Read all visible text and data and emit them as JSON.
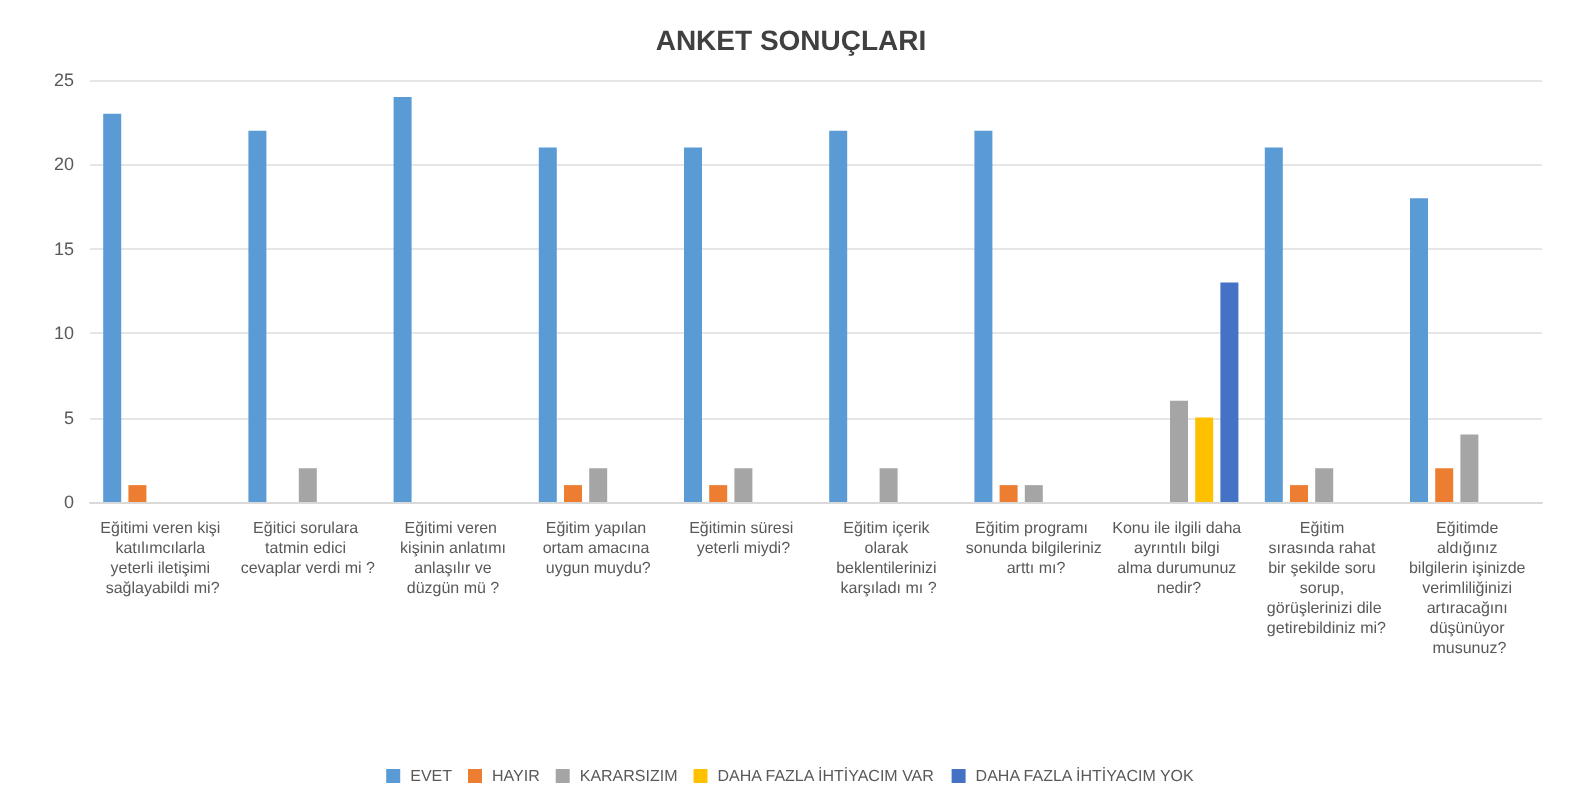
{
  "chart_data": {
    "type": "bar",
    "title": "ANKET SONUÇLARI",
    "categories": [
      "Eğitimi veren kişi katılımcılarla yeterli iletişimi sağlayabildi mi?",
      "Eğitici sorulara tatmin edici cevaplar verdi mi ?",
      "Eğitimi veren kişinin anlatımı anlaşılır ve düzgün mü ?",
      "Eğitim yapılan ortam amacına uygun muydu?",
      "Eğitimin süresi yeterli miydi?",
      "Eğitim içerik olarak beklentilerinizi karşıladı mı ?",
      "Eğitim programı sonunda bilgileriniz arttı mı?",
      "Konu ile ilgili daha ayrıntılı bilgi alma durumunuz nedir?",
      "Eğitim sırasında rahat bir şekilde soru sorup, görüşlerinizi dile getirebildiniz mi?",
      "Eğitimde aldığınız bilgilerin işinizde verimliliğinizi artıracağını düşünüyor musunuz?"
    ],
    "series": [
      {
        "name": "EVET",
        "color": "#5b9bd5",
        "values": [
          23,
          22,
          24,
          21,
          21,
          22,
          22,
          null,
          21,
          18
        ]
      },
      {
        "name": "HAYIR",
        "color": "#ed7d31",
        "values": [
          1,
          null,
          null,
          1,
          1,
          null,
          1,
          null,
          1,
          2
        ]
      },
      {
        "name": "KARARSIZIM",
        "color": "#a5a5a5",
        "values": [
          null,
          2,
          null,
          2,
          2,
          2,
          1,
          6,
          2,
          4
        ]
      },
      {
        "name": "DAHA FAZLA İHTİYACIM VAR",
        "color": "#ffc000",
        "values": [
          null,
          null,
          null,
          null,
          null,
          null,
          null,
          5,
          null,
          null
        ]
      },
      {
        "name": "DAHA FAZLA İHTİYACIM YOK",
        "color": "#4472c4",
        "values": [
          null,
          null,
          null,
          null,
          null,
          null,
          null,
          13,
          null,
          null
        ]
      }
    ],
    "ylim": [
      0,
      25
    ],
    "yticks": [
      0,
      5,
      10,
      15,
      20,
      25
    ],
    "grid": "y",
    "legend": "bottom"
  }
}
